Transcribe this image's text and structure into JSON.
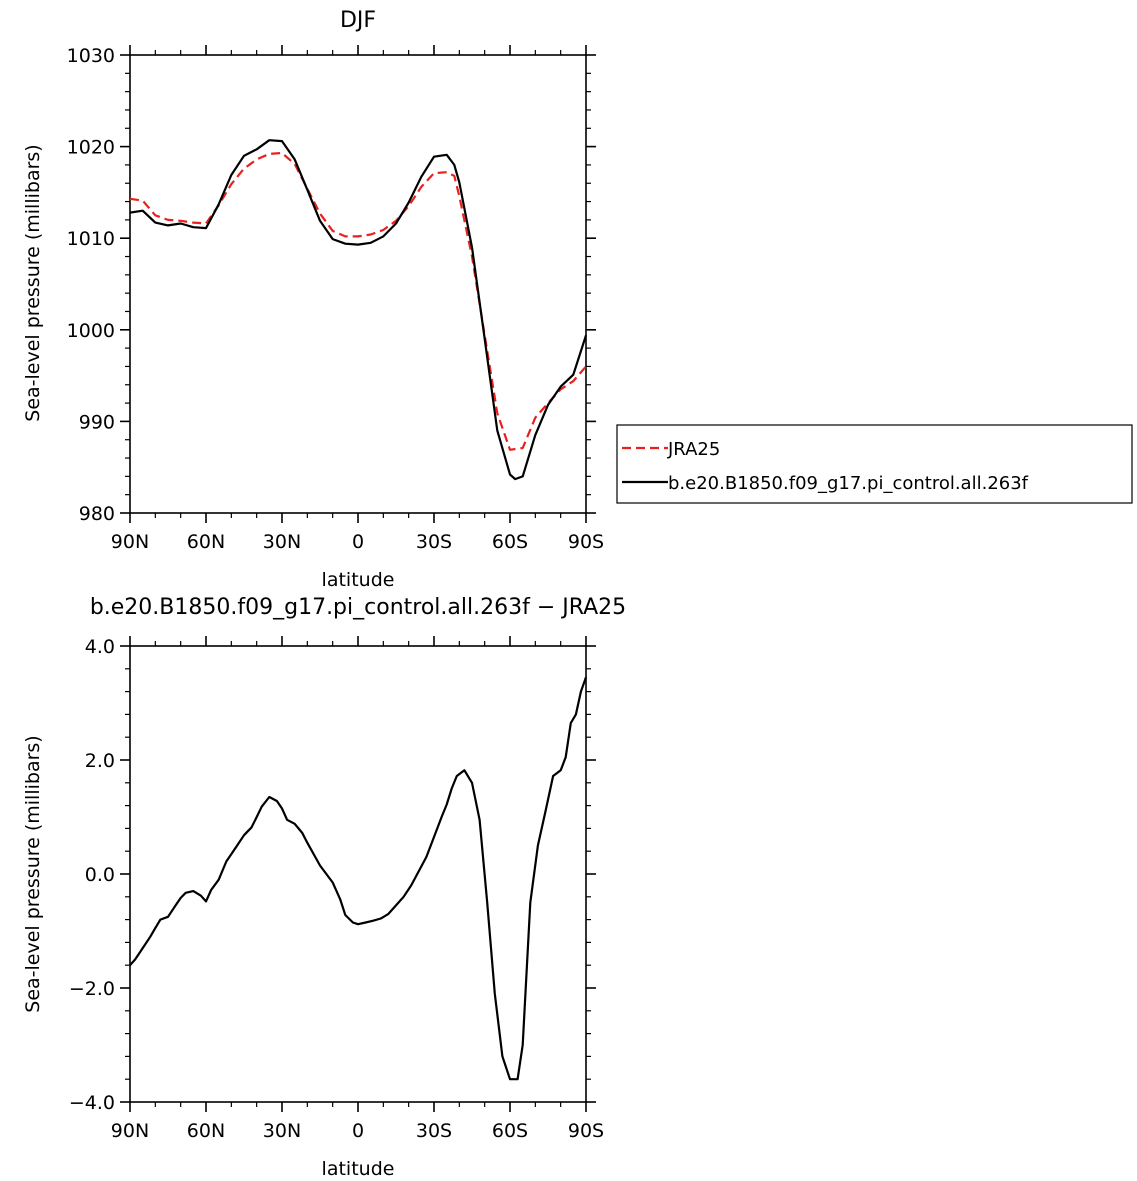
{
  "chart_data": [
    {
      "type": "line",
      "title": "DJF",
      "xlabel": "latitude",
      "ylabel": "Sea-level pressure (millibars)",
      "xlim": [
        90,
        -90
      ],
      "ylim": [
        980,
        1030
      ],
      "x_ticks": [
        {
          "value": 90,
          "label": "90N"
        },
        {
          "value": 60,
          "label": "60N"
        },
        {
          "value": 30,
          "label": "30N"
        },
        {
          "value": 0,
          "label": "0"
        },
        {
          "value": -30,
          "label": "30S"
        },
        {
          "value": -60,
          "label": "60S"
        },
        {
          "value": -90,
          "label": "90S"
        }
      ],
      "y_ticks": [
        980,
        990,
        1000,
        1010,
        1020,
        1030
      ],
      "y_tick_labels": [
        "980",
        "990",
        "1000",
        "1010",
        "1020",
        "1030"
      ],
      "legend_position": "right",
      "series": [
        {
          "name": "JRA25",
          "color": "#e8211e",
          "dash": true,
          "x": [
            90,
            85,
            80,
            75,
            70,
            65,
            60,
            55,
            50,
            45,
            40,
            35,
            30,
            25,
            20,
            15,
            10,
            5,
            0,
            -5,
            -10,
            -15,
            -20,
            -25,
            -30,
            -35,
            -38,
            -40,
            -45,
            -50,
            -55,
            -60,
            -65,
            -70,
            -75,
            -80,
            -85,
            -90
          ],
          "y": [
            1014.3,
            1014.1,
            1012.5,
            1012.0,
            1011.9,
            1011.7,
            1011.6,
            1013.6,
            1015.9,
            1017.6,
            1018.6,
            1019.2,
            1019.3,
            1018.1,
            1015.4,
            1012.7,
            1010.8,
            1010.2,
            1010.2,
            1010.4,
            1010.9,
            1011.9,
            1013.5,
            1015.6,
            1017.1,
            1017.2,
            1016.8,
            1014.6,
            1008.0,
            999.4,
            990.9,
            986.9,
            987.1,
            990.4,
            992.0,
            993.5,
            994.4,
            996.0
          ]
        },
        {
          "name": "b.e20.B1850.f09_g17.pi_control.all.263f",
          "color": "#000000",
          "dash": false,
          "x": [
            90,
            85,
            80,
            75,
            70,
            65,
            60,
            55,
            50,
            45,
            40,
            35,
            30,
            25,
            20,
            15,
            10,
            5,
            0,
            -5,
            -10,
            -15,
            -20,
            -25,
            -30,
            -35,
            -38,
            -40,
            -45,
            -50,
            -55,
            -60,
            -62,
            -65,
            -70,
            -75,
            -80,
            -85,
            -90
          ],
          "y": [
            1012.8,
            1013.0,
            1011.7,
            1011.4,
            1011.6,
            1011.2,
            1011.1,
            1013.7,
            1016.9,
            1019.0,
            1019.7,
            1020.7,
            1020.6,
            1018.6,
            1015.3,
            1011.9,
            1009.9,
            1009.4,
            1009.3,
            1009.5,
            1010.2,
            1011.6,
            1013.9,
            1016.7,
            1018.9,
            1019.1,
            1018.0,
            1016.1,
            1009.0,
            999.0,
            989.0,
            984.2,
            983.7,
            984.0,
            988.5,
            991.8,
            993.8,
            995.1,
            999.4
          ]
        }
      ]
    },
    {
      "type": "line",
      "title": "b.e20.B1850.f09_g17.pi_control.all.263f  −  JRA25",
      "xlabel": "latitude",
      "ylabel": "Sea-level pressure (millibars)",
      "xlim": [
        90,
        -90
      ],
      "ylim": [
        -4,
        4
      ],
      "x_ticks": [
        {
          "value": 90,
          "label": "90N"
        },
        {
          "value": 60,
          "label": "60N"
        },
        {
          "value": 30,
          "label": "30N"
        },
        {
          "value": 0,
          "label": "0"
        },
        {
          "value": -30,
          "label": "30S"
        },
        {
          "value": -60,
          "label": "60S"
        },
        {
          "value": -90,
          "label": "90S"
        }
      ],
      "y_ticks": [
        -4,
        -2,
        0,
        2,
        4
      ],
      "y_tick_labels": [
        "−4.0",
        "−2.0",
        "0.0",
        "2.0",
        "4.0"
      ],
      "series": [
        {
          "color": "#000000",
          "dash": false,
          "x": [
            90,
            88,
            85,
            82,
            80,
            78,
            75,
            72,
            70,
            68,
            65,
            62,
            60,
            58,
            55,
            52,
            48,
            45,
            42,
            40,
            38,
            35,
            32,
            30,
            28,
            25,
            22,
            20,
            15,
            10,
            7,
            5,
            2,
            0,
            -3,
            -6,
            -9,
            -12,
            -15,
            -18,
            -21,
            -24,
            -27,
            -30,
            -33,
            -35,
            -37,
            -39,
            -42,
            -45,
            -48,
            -51,
            -54,
            -57,
            -60,
            -63,
            -65,
            -68,
            -71,
            -74,
            -77,
            -80,
            -82,
            -84,
            -86,
            -88,
            -90
          ],
          "y": [
            -1.6,
            -1.5,
            -1.3,
            -1.1,
            -0.95,
            -0.8,
            -0.75,
            -0.55,
            -0.42,
            -0.33,
            -0.3,
            -0.38,
            -0.48,
            -0.28,
            -0.1,
            0.22,
            0.48,
            0.68,
            0.82,
            1.0,
            1.18,
            1.35,
            1.28,
            1.15,
            0.95,
            0.88,
            0.72,
            0.55,
            0.15,
            -0.15,
            -0.45,
            -0.72,
            -0.85,
            -0.88,
            -0.85,
            -0.82,
            -0.78,
            -0.7,
            -0.55,
            -0.4,
            -0.2,
            0.05,
            0.3,
            0.65,
            1.0,
            1.22,
            1.5,
            1.72,
            1.82,
            1.6,
            0.95,
            -0.5,
            -2.1,
            -3.2,
            -3.6,
            -3.6,
            -3.0,
            -0.5,
            0.5,
            1.1,
            1.72,
            1.82,
            2.05,
            2.65,
            2.8,
            3.2,
            3.45
          ]
        }
      ]
    }
  ]
}
